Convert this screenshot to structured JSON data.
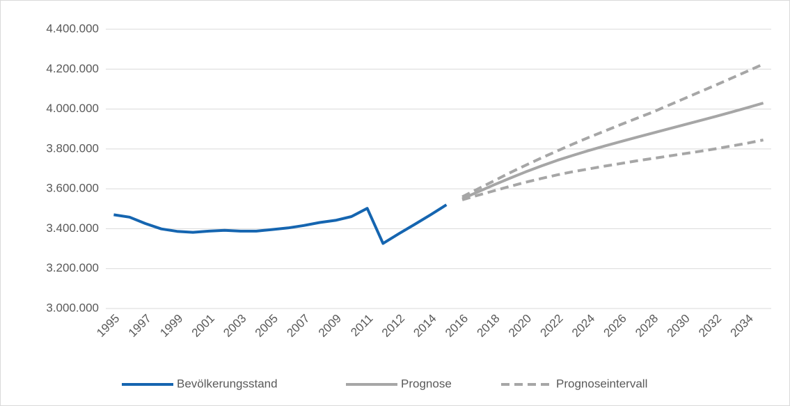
{
  "chart_data": {
    "type": "line",
    "categories": [
      "1995",
      null,
      "1997",
      null,
      "1999",
      null,
      "2001",
      null,
      "2003",
      null,
      "2005",
      null,
      "2007",
      null,
      "2009",
      null,
      "2011",
      null,
      "2012",
      null,
      "2014",
      null,
      "2016",
      null,
      "2018",
      null,
      "2020",
      null,
      "2022",
      null,
      "2024",
      null,
      "2026",
      null,
      "2028",
      null,
      "2030",
      null,
      "2032",
      null,
      "2034",
      null
    ],
    "series": [
      {
        "name": "Bevölkerungsstand",
        "color": "#1565b0",
        "dashed": false,
        "values": [
          3470000,
          3458000,
          3426000,
          3399000,
          3387000,
          3382000,
          3388000,
          3392000,
          3388000,
          3388000,
          3396000,
          3404000,
          3416000,
          3431000,
          3442000,
          3461000,
          3502000,
          3326000,
          3375000,
          3422000,
          3470000,
          3520000,
          null,
          null,
          null,
          null,
          null,
          null,
          null,
          null,
          null,
          null,
          null,
          null,
          null,
          null,
          null,
          null,
          null,
          null,
          null,
          null
        ]
      },
      {
        "name": "Prognose",
        "color": "#a6a6a6",
        "dashed": false,
        "values": [
          null,
          null,
          null,
          null,
          null,
          null,
          null,
          null,
          null,
          null,
          null,
          null,
          null,
          null,
          null,
          null,
          null,
          null,
          null,
          null,
          null,
          null,
          3550000,
          3585000,
          3620000,
          3653000,
          3685000,
          3715000,
          3743000,
          3768000,
          3792000,
          3815000,
          3837000,
          3858000,
          3879000,
          3900000,
          3921000,
          3942000,
          3963000,
          3985000,
          4007000,
          4030000
        ]
      },
      {
        "name": "Prognoseintervall",
        "color": "#a6a6a6",
        "dashed": true,
        "values": [
          null,
          null,
          null,
          null,
          null,
          null,
          null,
          null,
          null,
          null,
          null,
          null,
          null,
          null,
          null,
          null,
          null,
          null,
          null,
          null,
          null,
          null,
          3560000,
          3600000,
          3640000,
          3680000,
          3718000,
          3755000,
          3790000,
          3825000,
          3858000,
          3890000,
          3922000,
          3953000,
          3984000,
          4018000,
          4052000,
          4086000,
          4120000,
          4155000,
          4190000,
          4225000
        ]
      },
      {
        "color": "#a6a6a6",
        "dashed": true,
        "values": [
          null,
          null,
          null,
          null,
          null,
          null,
          null,
          null,
          null,
          null,
          null,
          null,
          null,
          null,
          null,
          null,
          null,
          null,
          null,
          null,
          null,
          null,
          3545000,
          3568000,
          3590000,
          3612000,
          3633000,
          3652000,
          3670000,
          3686000,
          3700000,
          3714000,
          3727000,
          3740000,
          3752000,
          3764000,
          3776000,
          3788000,
          3801000,
          3815000,
          3829000,
          3845000
        ]
      }
    ],
    "ylim": [
      3000000,
      4400000
    ],
    "yticks": [
      {
        "value": 3000000,
        "label": "3.000.000"
      },
      {
        "value": 3200000,
        "label": "3.200.000"
      },
      {
        "value": 3400000,
        "label": "3.400.000"
      },
      {
        "value": 3600000,
        "label": "3.600.000"
      },
      {
        "value": 3800000,
        "label": "3.800.000"
      },
      {
        "value": 4000000,
        "label": "4.000.000"
      },
      {
        "value": 4200000,
        "label": "4.200.000"
      },
      {
        "value": 4400000,
        "label": "4.400.000"
      }
    ],
    "grid": true,
    "legend": "bottom"
  }
}
